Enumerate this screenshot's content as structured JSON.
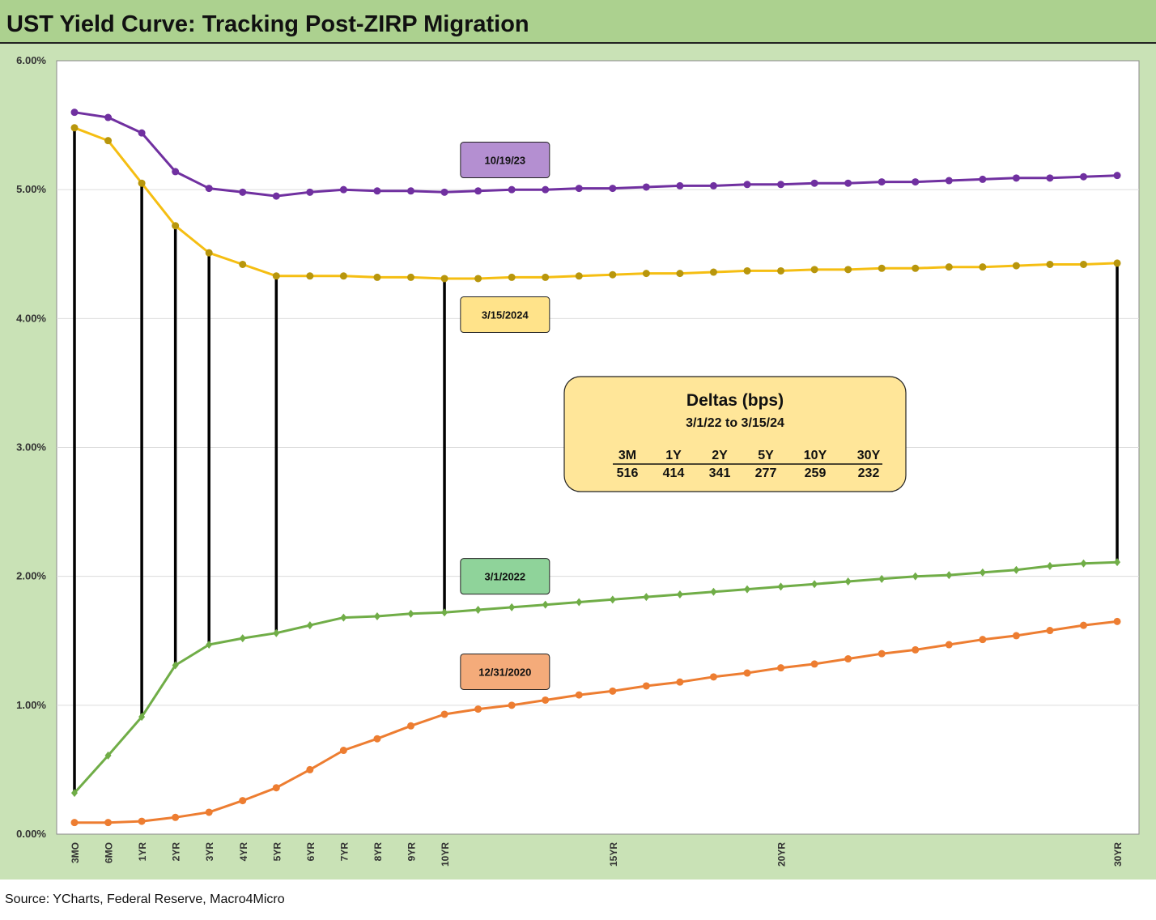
{
  "title": "UST Yield Curve: Tracking Post-ZIRP Migration",
  "source": "Source: YCharts, Federal Reserve, Macro4Micro",
  "chart_data": {
    "type": "line",
    "ylim": [
      0,
      6
    ],
    "y_ticks": [
      "0.00%",
      "1.00%",
      "2.00%",
      "3.00%",
      "4.00%",
      "5.00%",
      "6.00%"
    ],
    "y_tick_values": [
      0,
      1,
      2,
      3,
      4,
      5,
      6
    ],
    "grid": true,
    "x": [
      0.25,
      0.5,
      1,
      2,
      3,
      4,
      5,
      6,
      7,
      8,
      9,
      10,
      11,
      12,
      13,
      14,
      15,
      16,
      17,
      18,
      19,
      20,
      21,
      22,
      23,
      24,
      25,
      26,
      27,
      28,
      29,
      30
    ],
    "x_tick_labels": [
      {
        "label": "3MO",
        "x": 0.25
      },
      {
        "label": "6MO",
        "x": 0.5
      },
      {
        "label": "1YR",
        "x": 1
      },
      {
        "label": "2YR",
        "x": 2
      },
      {
        "label": "3YR",
        "x": 3
      },
      {
        "label": "4YR",
        "x": 4
      },
      {
        "label": "5YR",
        "x": 5
      },
      {
        "label": "6YR",
        "x": 6
      },
      {
        "label": "7YR",
        "x": 7
      },
      {
        "label": "8YR",
        "x": 8
      },
      {
        "label": "9YR",
        "x": 9
      },
      {
        "label": "10YR",
        "x": 10
      },
      {
        "label": "15YR",
        "x": 15
      },
      {
        "label": "20YR",
        "x": 20
      },
      {
        "label": "30YR",
        "x": 30
      }
    ],
    "series": [
      {
        "name": "10/19/23",
        "color": "#7030a0",
        "marker": "circle",
        "values": [
          5.6,
          5.56,
          5.44,
          5.14,
          5.01,
          4.98,
          4.95,
          4.98,
          5.0,
          4.99,
          4.99,
          4.98,
          4.99,
          5.0,
          5.0,
          5.01,
          5.01,
          5.02,
          5.03,
          5.03,
          5.04,
          5.04,
          5.05,
          5.05,
          5.06,
          5.06,
          5.07,
          5.08,
          5.09,
          5.09,
          5.1,
          5.11
        ]
      },
      {
        "name": "3/15/2024",
        "color": "#f5be12",
        "marker_color": "#b8960c",
        "marker": "circle",
        "values": [
          5.48,
          5.38,
          5.05,
          4.72,
          4.51,
          4.42,
          4.33,
          4.33,
          4.33,
          4.32,
          4.32,
          4.31,
          4.31,
          4.32,
          4.32,
          4.33,
          4.34,
          4.35,
          4.35,
          4.36,
          4.37,
          4.37,
          4.38,
          4.38,
          4.39,
          4.39,
          4.4,
          4.4,
          4.41,
          4.42,
          4.42,
          4.43
        ]
      },
      {
        "name": "3/1/2022",
        "color": "#70ad47",
        "marker": "diamond",
        "values": [
          0.32,
          0.61,
          0.91,
          1.31,
          1.47,
          1.52,
          1.56,
          1.62,
          1.68,
          1.69,
          1.71,
          1.72,
          1.74,
          1.76,
          1.78,
          1.8,
          1.82,
          1.84,
          1.86,
          1.88,
          1.9,
          1.92,
          1.94,
          1.96,
          1.98,
          2.0,
          2.01,
          2.03,
          2.05,
          2.08,
          2.1,
          2.11
        ]
      },
      {
        "name": "12/31/2020",
        "color": "#ed7d31",
        "marker": "circle",
        "values": [
          0.09,
          0.09,
          0.1,
          0.13,
          0.17,
          0.26,
          0.36,
          0.5,
          0.65,
          0.74,
          0.84,
          0.93,
          0.97,
          1.0,
          1.04,
          1.08,
          1.11,
          1.15,
          1.18,
          1.22,
          1.25,
          1.29,
          1.32,
          1.36,
          1.4,
          1.43,
          1.47,
          1.51,
          1.54,
          1.58,
          1.62,
          1.65
        ]
      }
    ],
    "delta_lines": {
      "from_series": "3/1/2022",
      "to_series": "3/15/2024",
      "at_x": [
        0.25,
        1,
        2,
        3,
        5,
        10,
        30
      ]
    },
    "labels": [
      {
        "series": "10/19/23",
        "text": "10/19/23",
        "fill": "#b48fd1"
      },
      {
        "series": "3/15/2024",
        "text": "3/15/2024",
        "fill": "#ffe38a"
      },
      {
        "series": "3/1/2022",
        "text": "3/1/2022",
        "fill": "#8fd39a"
      },
      {
        "series": "12/31/2020",
        "text": "12/31/2020",
        "fill": "#f4ab7a"
      }
    ],
    "deltas_box": {
      "title": "Deltas (bps)",
      "subtitle": "3/1/22 to 3/15/24",
      "headers": [
        "3M",
        "1Y",
        "2Y",
        "5Y",
        "10Y",
        "30Y"
      ],
      "values": [
        "516",
        "414",
        "341",
        "277",
        "259",
        "232"
      ],
      "fill": "#ffe699"
    }
  }
}
